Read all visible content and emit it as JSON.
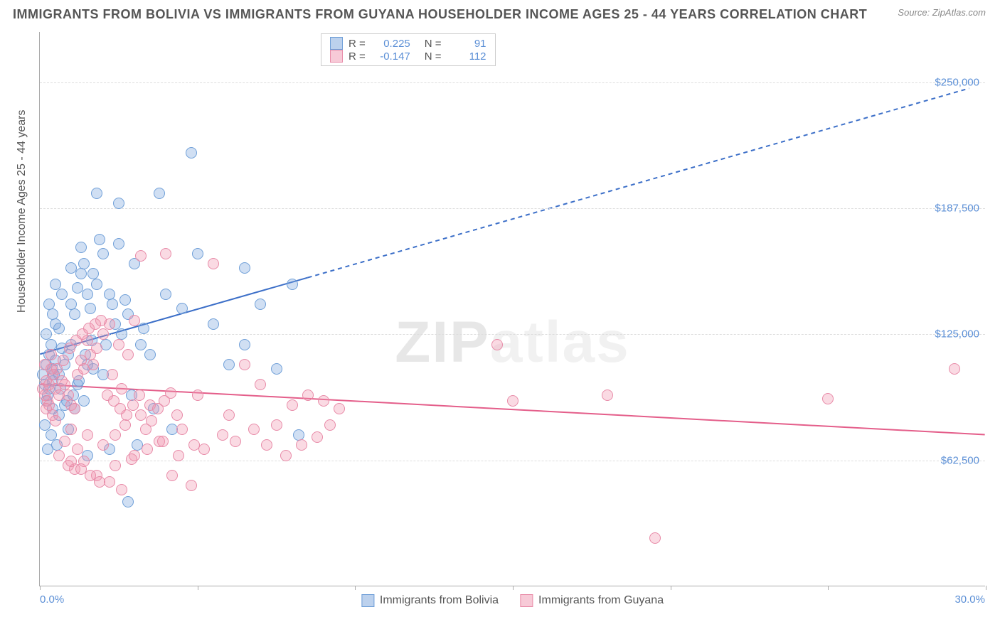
{
  "title": "IMMIGRANTS FROM BOLIVIA VS IMMIGRANTS FROM GUYANA HOUSEHOLDER INCOME AGES 25 - 44 YEARS CORRELATION CHART",
  "source_label": "Source:",
  "source_value": "ZipAtlas.com",
  "ylabel": "Householder Income Ages 25 - 44 years",
  "watermark_a": "ZIP",
  "watermark_b": "atlas",
  "chart": {
    "type": "scatter",
    "xlim": [
      0,
      30
    ],
    "ylim": [
      0,
      275000
    ],
    "x_unit": "%",
    "y_unit": "$",
    "xtick_left": "0.0%",
    "xtick_right": "30.0%",
    "x_minor_ticks": [
      0,
      5,
      10,
      15,
      20,
      25,
      30
    ],
    "y_gridlines": [
      62500,
      125000,
      187500,
      250000
    ],
    "ytick_labels": [
      "$62,500",
      "$125,000",
      "$187,500",
      "$250,000"
    ],
    "background_color": "#ffffff",
    "grid_color": "#dddddd",
    "axis_color": "#aaaaaa",
    "tick_label_color": "#5b8fd6",
    "series": [
      {
        "name": "Immigrants from Bolivia",
        "color_fill": "rgba(121,163,220,0.35)",
        "color_stroke": "#6f9fd8",
        "marker_radius": 8,
        "trend": {
          "color": "#3c6fc8",
          "width": 2,
          "x1": 0,
          "y1": 115000,
          "x2": 8.5,
          "y2": 153000,
          "dash_to_x": 29.5,
          "dash_to_y": 247000
        },
        "R_label": "R =",
        "R_value": "0.225",
        "N_label": "N =",
        "N_value": "91",
        "points": [
          [
            0.1,
            105000
          ],
          [
            0.2,
            110000
          ],
          [
            0.15,
            100000
          ],
          [
            0.3,
            115000
          ],
          [
            0.25,
            95000
          ],
          [
            0.4,
            108000
          ],
          [
            0.35,
            120000
          ],
          [
            0.5,
            112000
          ],
          [
            0.3,
            98000
          ],
          [
            0.6,
            105000
          ],
          [
            0.2,
            125000
          ],
          [
            0.7,
            118000
          ],
          [
            0.4,
            102000
          ],
          [
            0.8,
            110000
          ],
          [
            0.5,
            130000
          ],
          [
            0.9,
            115000
          ],
          [
            1.0,
            140000
          ],
          [
            1.2,
            148000
          ],
          [
            1.1,
            135000
          ],
          [
            1.3,
            155000
          ],
          [
            1.5,
            145000
          ],
          [
            1.4,
            160000
          ],
          [
            1.0,
            120000
          ],
          [
            1.6,
            138000
          ],
          [
            1.8,
            150000
          ],
          [
            2.0,
            165000
          ],
          [
            1.7,
            155000
          ],
          [
            2.2,
            145000
          ],
          [
            2.5,
            170000
          ],
          [
            2.3,
            140000
          ],
          [
            2.8,
            135000
          ],
          [
            3.0,
            160000
          ],
          [
            2.6,
            125000
          ],
          [
            1.5,
            110000
          ],
          [
            1.2,
            100000
          ],
          [
            0.8,
            90000
          ],
          [
            0.6,
            85000
          ],
          [
            0.9,
            78000
          ],
          [
            1.1,
            88000
          ],
          [
            1.4,
            92000
          ],
          [
            2.0,
            105000
          ],
          [
            2.4,
            130000
          ],
          [
            2.7,
            142000
          ],
          [
            3.2,
            120000
          ],
          [
            3.5,
            115000
          ],
          [
            4.0,
            145000
          ],
          [
            4.5,
            138000
          ],
          [
            5.0,
            165000
          ],
          [
            5.5,
            130000
          ],
          [
            6.0,
            110000
          ],
          [
            6.5,
            120000
          ],
          [
            7.0,
            140000
          ],
          [
            7.5,
            108000
          ],
          [
            8.0,
            150000
          ],
          [
            8.2,
            75000
          ],
          [
            1.8,
            195000
          ],
          [
            2.5,
            190000
          ],
          [
            3.8,
            195000
          ],
          [
            4.8,
            215000
          ],
          [
            6.5,
            158000
          ],
          [
            0.5,
            150000
          ],
          [
            0.7,
            145000
          ],
          [
            0.3,
            140000
          ],
          [
            0.4,
            135000
          ],
          [
            0.6,
            128000
          ],
          [
            1.0,
            158000
          ],
          [
            1.3,
            168000
          ],
          [
            1.9,
            172000
          ],
          [
            2.1,
            120000
          ],
          [
            3.3,
            128000
          ],
          [
            1.7,
            108000
          ],
          [
            2.9,
            95000
          ],
          [
            3.6,
            88000
          ],
          [
            4.2,
            78000
          ],
          [
            1.5,
            65000
          ],
          [
            2.2,
            68000
          ],
          [
            2.8,
            42000
          ],
          [
            3.1,
            70000
          ],
          [
            0.2,
            92000
          ],
          [
            0.4,
            88000
          ],
          [
            0.15,
            80000
          ],
          [
            0.35,
            75000
          ],
          [
            0.55,
            70000
          ],
          [
            0.25,
            68000
          ],
          [
            0.45,
            105000
          ],
          [
            0.65,
            98000
          ],
          [
            0.85,
            92000
          ],
          [
            1.05,
            95000
          ],
          [
            1.25,
            102000
          ],
          [
            1.45,
            115000
          ],
          [
            1.65,
            122000
          ]
        ]
      },
      {
        "name": "Immigrants from Guyana",
        "color_fill": "rgba(240,150,175,0.35)",
        "color_stroke": "#e88ba8",
        "marker_radius": 8,
        "trend": {
          "color": "#e45e8a",
          "width": 2,
          "x1": 0,
          "y1": 100000,
          "x2": 30,
          "y2": 75000
        },
        "R_label": "R =",
        "R_value": "-0.147",
        "N_label": "N =",
        "N_value": "112",
        "points": [
          [
            0.1,
            98000
          ],
          [
            0.2,
            102000
          ],
          [
            0.15,
            95000
          ],
          [
            0.3,
            100000
          ],
          [
            0.25,
            92000
          ],
          [
            0.4,
            105000
          ],
          [
            0.35,
            108000
          ],
          [
            0.5,
            98000
          ],
          [
            0.3,
            90000
          ],
          [
            0.6,
            95000
          ],
          [
            0.2,
            88000
          ],
          [
            0.7,
            102000
          ],
          [
            0.4,
            85000
          ],
          [
            0.8,
            100000
          ],
          [
            0.5,
            82000
          ],
          [
            0.9,
            95000
          ],
          [
            1.0,
            90000
          ],
          [
            1.2,
            105000
          ],
          [
            1.1,
            88000
          ],
          [
            1.3,
            112000
          ],
          [
            1.5,
            122000
          ],
          [
            1.4,
            108000
          ],
          [
            1.0,
            78000
          ],
          [
            1.6,
            115000
          ],
          [
            1.8,
            118000
          ],
          [
            2.0,
            125000
          ],
          [
            1.7,
            110000
          ],
          [
            2.2,
            130000
          ],
          [
            2.5,
            120000
          ],
          [
            2.3,
            105000
          ],
          [
            2.8,
            115000
          ],
          [
            3.0,
            132000
          ],
          [
            2.6,
            98000
          ],
          [
            1.5,
            75000
          ],
          [
            1.2,
            68000
          ],
          [
            0.8,
            72000
          ],
          [
            0.6,
            65000
          ],
          [
            0.9,
            60000
          ],
          [
            1.1,
            58000
          ],
          [
            1.4,
            62000
          ],
          [
            2.0,
            70000
          ],
          [
            2.4,
            75000
          ],
          [
            2.7,
            80000
          ],
          [
            3.2,
            85000
          ],
          [
            3.5,
            90000
          ],
          [
            4.0,
            165000
          ],
          [
            4.5,
            78000
          ],
          [
            5.0,
            95000
          ],
          [
            5.5,
            160000
          ],
          [
            6.0,
            85000
          ],
          [
            6.5,
            110000
          ],
          [
            7.0,
            100000
          ],
          [
            7.5,
            80000
          ],
          [
            8.0,
            90000
          ],
          [
            8.5,
            95000
          ],
          [
            9.0,
            92000
          ],
          [
            9.5,
            88000
          ],
          [
            3.8,
            72000
          ],
          [
            4.2,
            55000
          ],
          [
            4.8,
            50000
          ],
          [
            3.2,
            164000
          ],
          [
            5.2,
            68000
          ],
          [
            5.8,
            75000
          ],
          [
            6.2,
            72000
          ],
          [
            6.8,
            78000
          ],
          [
            7.2,
            70000
          ],
          [
            7.8,
            65000
          ],
          [
            8.3,
            70000
          ],
          [
            8.8,
            74000
          ],
          [
            9.2,
            80000
          ],
          [
            14.5,
            120000
          ],
          [
            15.0,
            92000
          ],
          [
            18.0,
            95000
          ],
          [
            19.5,
            24000
          ],
          [
            25.0,
            93000
          ],
          [
            29.0,
            108000
          ],
          [
            1.8,
            55000
          ],
          [
            2.2,
            52000
          ],
          [
            2.6,
            48000
          ],
          [
            3.0,
            65000
          ],
          [
            1.0,
            62000
          ],
          [
            1.3,
            58000
          ],
          [
            1.6,
            55000
          ],
          [
            1.9,
            52000
          ],
          [
            2.4,
            60000
          ],
          [
            2.9,
            63000
          ],
          [
            3.4,
            68000
          ],
          [
            3.9,
            72000
          ],
          [
            4.4,
            65000
          ],
          [
            4.9,
            70000
          ],
          [
            0.15,
            110000
          ],
          [
            0.35,
            115000
          ],
          [
            0.55,
            108000
          ],
          [
            0.75,
            112000
          ],
          [
            0.95,
            118000
          ],
          [
            1.15,
            122000
          ],
          [
            1.35,
            125000
          ],
          [
            1.55,
            128000
          ],
          [
            1.75,
            130000
          ],
          [
            1.95,
            132000
          ],
          [
            2.15,
            95000
          ],
          [
            2.35,
            92000
          ],
          [
            2.55,
            88000
          ],
          [
            2.75,
            85000
          ],
          [
            2.95,
            90000
          ],
          [
            3.15,
            95000
          ],
          [
            3.35,
            78000
          ],
          [
            3.55,
            82000
          ],
          [
            3.75,
            88000
          ],
          [
            3.95,
            92000
          ],
          [
            4.15,
            96000
          ],
          [
            4.35,
            85000
          ]
        ]
      }
    ],
    "legend_swatch_bolivia": {
      "fill": "rgba(121,163,220,0.5)",
      "stroke": "#6f9fd8"
    },
    "legend_swatch_guyana": {
      "fill": "rgba(240,150,175,0.5)",
      "stroke": "#e88ba8"
    }
  }
}
